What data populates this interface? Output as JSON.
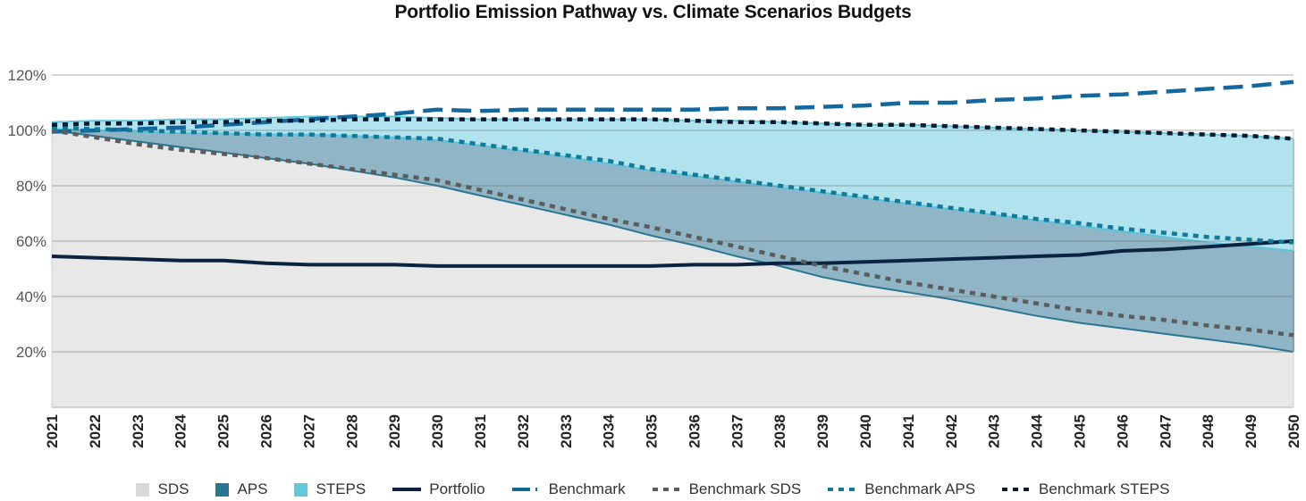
{
  "chart_data": {
    "type": "area",
    "title": "Portfolio Emission Pathway vs. Climate Scenarios Budgets",
    "xlabel": "",
    "ylabel": "",
    "ylim": [
      0,
      120
    ],
    "y_ticks": [
      "20%",
      "40%",
      "60%",
      "80%",
      "100%",
      "120%"
    ],
    "y_tick_values": [
      20,
      40,
      60,
      80,
      100,
      120
    ],
    "grid": true,
    "legend_position": "bottom",
    "categories": [
      "2021",
      "2022",
      "2023",
      "2024",
      "2025",
      "2026",
      "2027",
      "2028",
      "2029",
      "2030",
      "2031",
      "2032",
      "2033",
      "2034",
      "2035",
      "2036",
      "2037",
      "2038",
      "2039",
      "2040",
      "2041",
      "2042",
      "2043",
      "2044",
      "2045",
      "2046",
      "2047",
      "2048",
      "2049",
      "2050"
    ],
    "area_series": [
      {
        "name": "SDS",
        "color": "#d9d9d9",
        "fill": "#e8e8e8",
        "edge": "#2a7590",
        "values": [
          100,
          98,
          96,
          94,
          92,
          90,
          88,
          85.5,
          83,
          80,
          76.5,
          73,
          69.5,
          66,
          62,
          58.5,
          54.5,
          51,
          47,
          44,
          41.5,
          39,
          36,
          33,
          30.5,
          28.5,
          26.5,
          24.5,
          22.5,
          20
        ]
      },
      {
        "name": "APS",
        "color": "#2a7590",
        "fill": "#8fb5c6",
        "edge": "#5bc4d9",
        "values": [
          100.5,
          100,
          99.5,
          99,
          99,
          98.5,
          98.5,
          98,
          97.5,
          96.5,
          94.5,
          92.5,
          90.5,
          88,
          85.5,
          83.5,
          81.5,
          79.5,
          77.5,
          75.5,
          73.5,
          71.5,
          69.5,
          67.5,
          65.5,
          63.5,
          61.5,
          59.5,
          58,
          56.5
        ]
      },
      {
        "name": "STEPS",
        "color": "#62c9dc",
        "fill": "#b0e3ee",
        "edge": "#62c9dc",
        "values": [
          103,
          103.5,
          103.5,
          104,
          104,
          104.5,
          105,
          105,
          105,
          104.5,
          104,
          104,
          104,
          104,
          104,
          103.5,
          103.5,
          103,
          102.5,
          102,
          102,
          101.5,
          101,
          100.5,
          100,
          99.5,
          99,
          98.5,
          98,
          97
        ]
      }
    ],
    "line_series": [
      {
        "name": "Portfolio",
        "color": "#0b2340",
        "style": "solid",
        "values": [
          54.5,
          54,
          53.5,
          53,
          53,
          52,
          51.5,
          51.5,
          51.5,
          51,
          51,
          51,
          51,
          51,
          51,
          51.5,
          51.5,
          52,
          52,
          52.5,
          53,
          53.5,
          54,
          54.5,
          55,
          56.5,
          57,
          58,
          59,
          60
        ]
      },
      {
        "name": "Benchmark",
        "color": "#1368a0",
        "style": "dash",
        "values": [
          99.5,
          100,
          100.5,
          101,
          102,
          103,
          104,
          105,
          106,
          107.5,
          107,
          107.5,
          107.5,
          107.5,
          107.5,
          107.5,
          108,
          108,
          108.5,
          109,
          110,
          110,
          111,
          111.5,
          112.5,
          113,
          114,
          115,
          116,
          117.5
        ]
      },
      {
        "name": "Benchmark SDS",
        "color": "#5c5c5c",
        "style": "dot",
        "values": [
          100,
          97.5,
          95,
          93,
          91.5,
          90,
          88,
          86,
          84,
          82,
          78.5,
          75,
          71.5,
          68,
          65,
          61.5,
          58,
          54.5,
          51,
          48,
          45,
          42.5,
          40,
          37.5,
          35,
          33,
          31.5,
          29.5,
          28,
          26
        ]
      },
      {
        "name": "Benchmark APS",
        "color": "#0f7a99",
        "style": "dot",
        "values": [
          101,
          100.5,
          100,
          99.5,
          99,
          98.5,
          98.5,
          98,
          97.5,
          97,
          95,
          93,
          91,
          89,
          86,
          84,
          82,
          80,
          78,
          76,
          74,
          72,
          70,
          68,
          66.5,
          64.5,
          63,
          61.5,
          60.5,
          59.5
        ]
      },
      {
        "name": "Benchmark STEPS",
        "color": "#0b1a30",
        "style": "dot",
        "values": [
          102,
          102.5,
          102.5,
          103,
          103,
          103.5,
          103.5,
          104,
          104,
          104,
          104,
          104,
          104,
          104,
          104,
          103.5,
          103,
          103,
          102.5,
          102,
          102,
          101.5,
          101,
          100.5,
          100,
          99.5,
          99,
          98.5,
          98,
          97
        ]
      }
    ]
  },
  "legend": [
    {
      "label": "SDS",
      "type": "box",
      "color": "#d9d9d9"
    },
    {
      "label": "APS",
      "type": "box",
      "color": "#2a7590"
    },
    {
      "label": "STEPS",
      "type": "box",
      "color": "#62c9dc"
    },
    {
      "label": "Portfolio",
      "type": "solid",
      "color": "#0b2340"
    },
    {
      "label": "Benchmark",
      "type": "dash",
      "color": "#1368a0"
    },
    {
      "label": "Benchmark SDS",
      "type": "dot",
      "color": "#5c5c5c"
    },
    {
      "label": "Benchmark APS",
      "type": "dot",
      "color": "#0f7a99"
    },
    {
      "label": "Benchmark STEPS",
      "type": "dot",
      "color": "#0b1a30"
    }
  ]
}
